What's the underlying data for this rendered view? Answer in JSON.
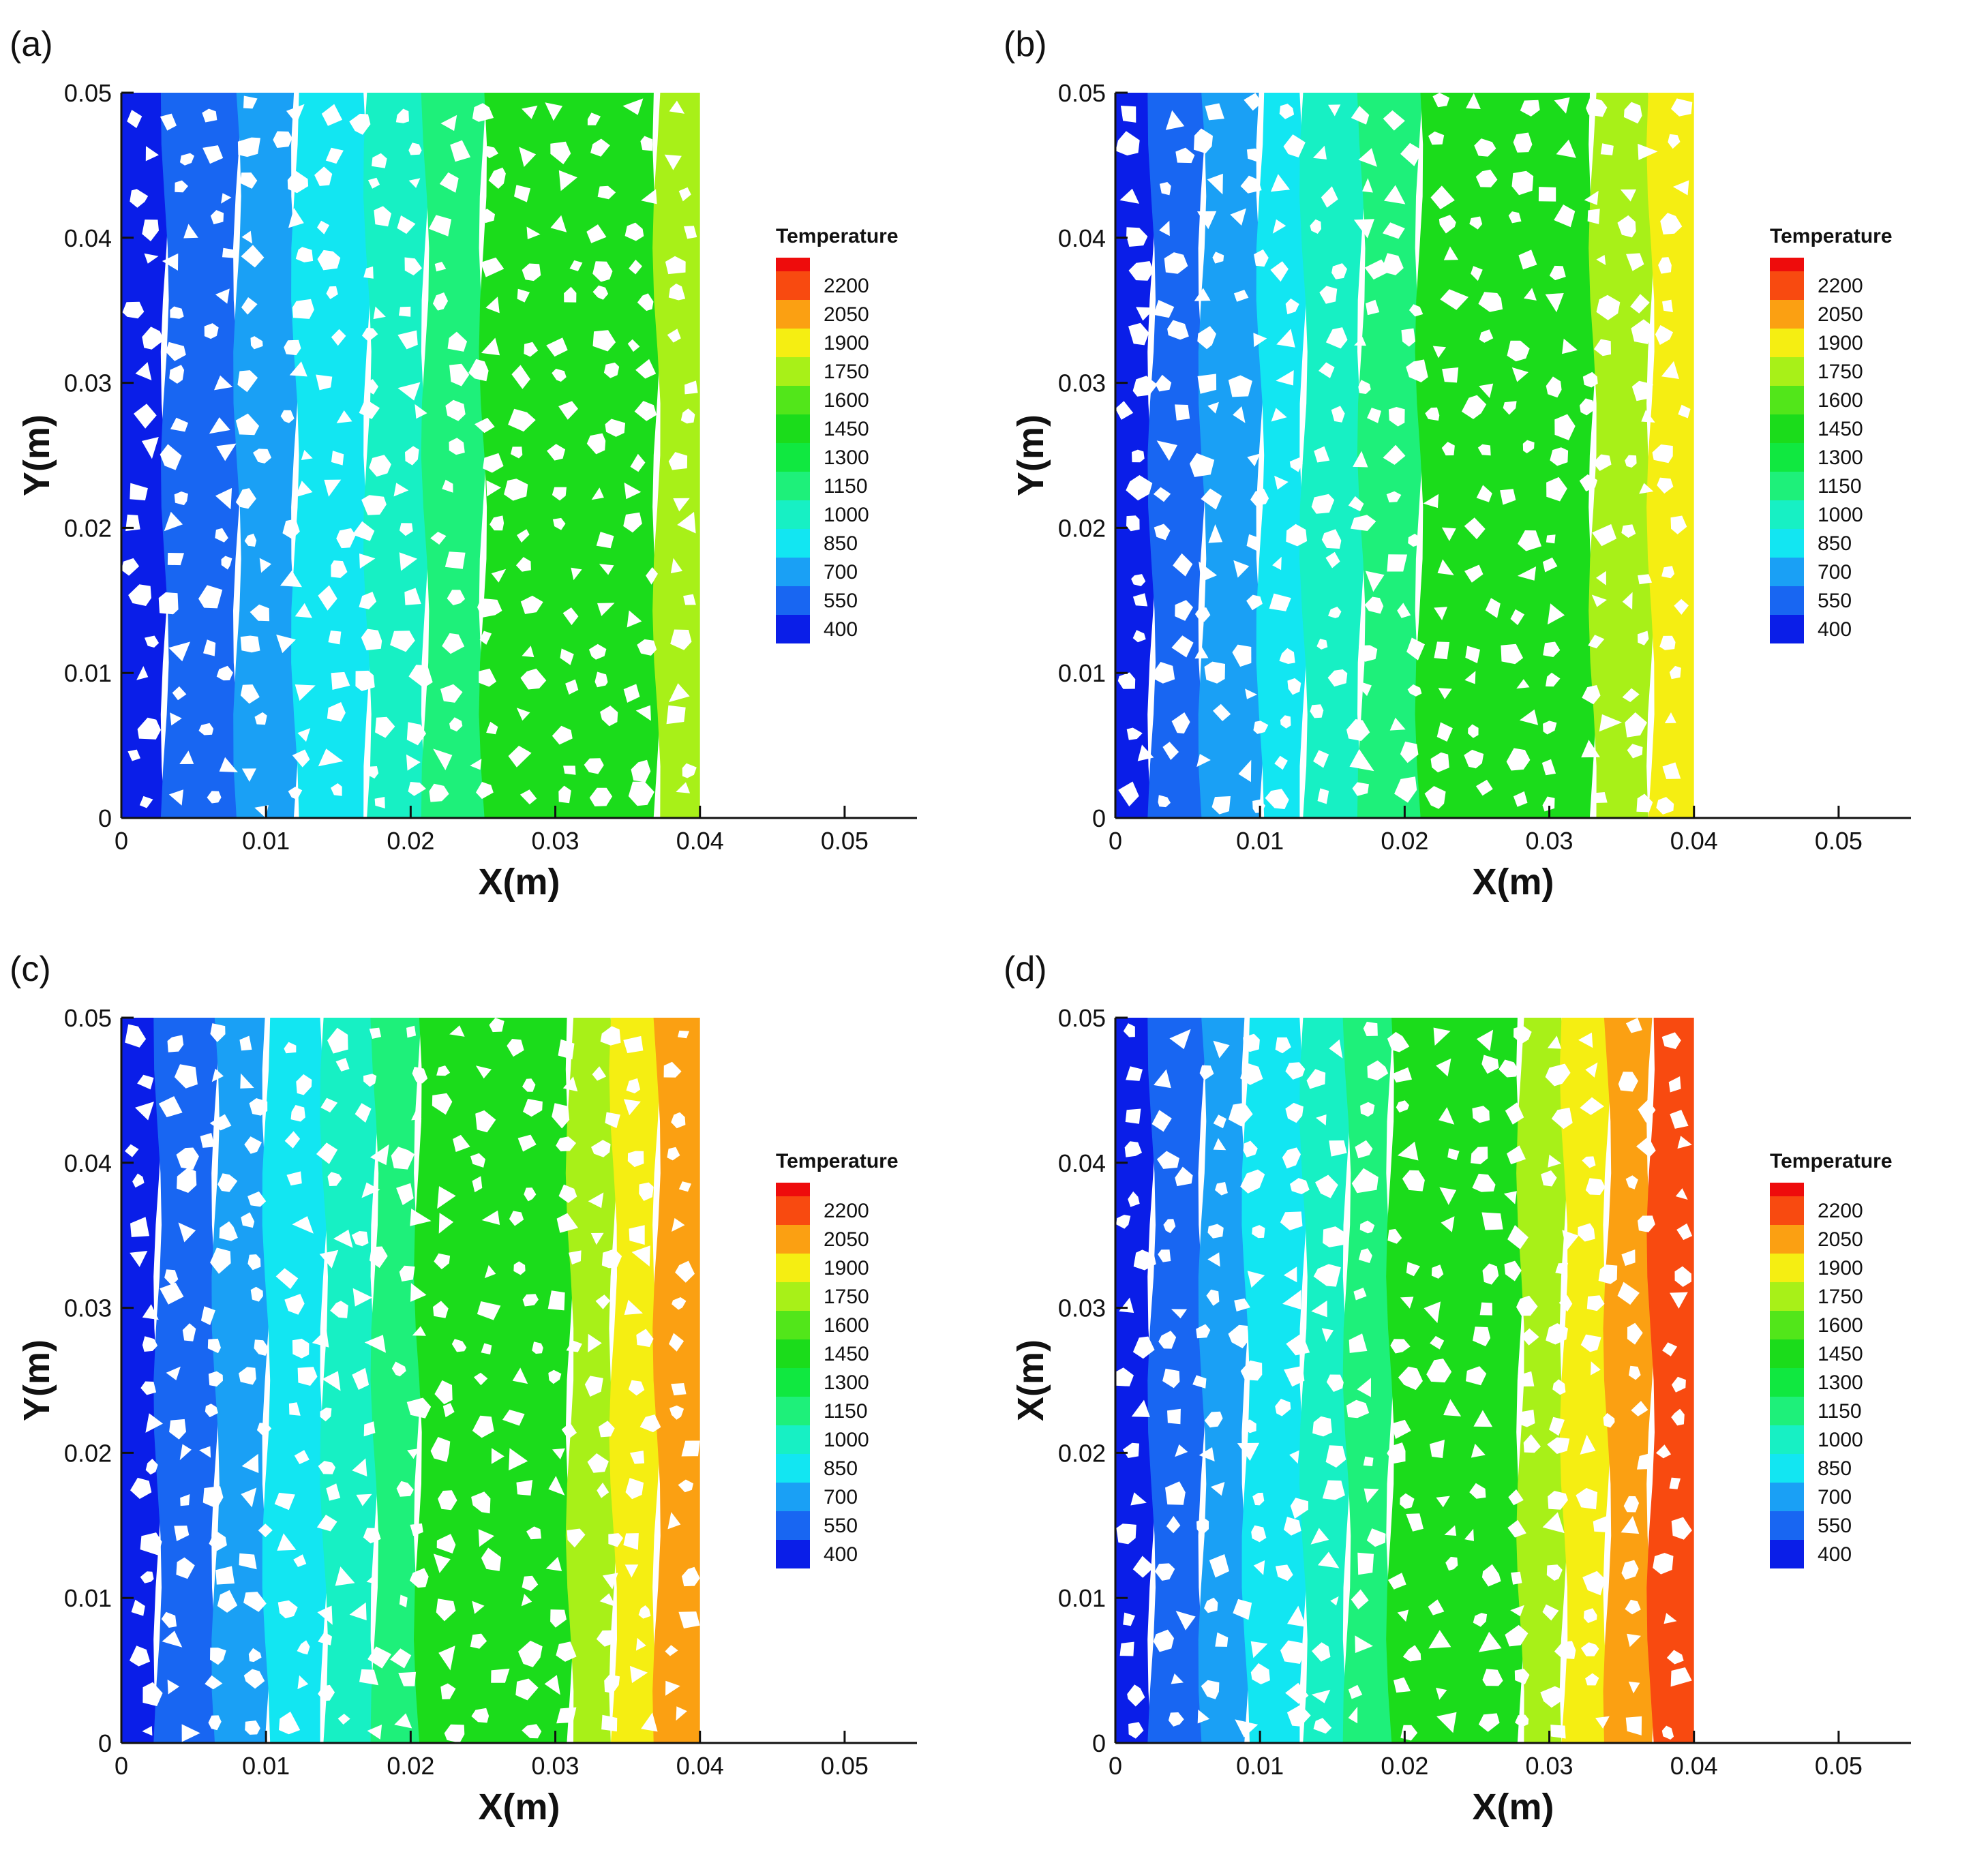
{
  "chart_data": [
    {
      "type": "heatmap",
      "panel_label": "(a)",
      "xlabel": "X(m)",
      "ylabel": "Y(m)",
      "xlim": [
        0,
        0.055
      ],
      "ylim": [
        0,
        0.05
      ],
      "x_ticks": [
        "0",
        "0.01",
        "0.02",
        "0.03",
        "0.04",
        "0.05"
      ],
      "y_ticks": [
        "0",
        "0.01",
        "0.02",
        "0.03",
        "0.04",
        "0.05"
      ],
      "domain_x_max": 0.04,
      "legend_title": "Temperature",
      "legend_levels": [
        "2200",
        "2050",
        "1900",
        "1750",
        "1600",
        "1450",
        "1300",
        "1150",
        "1000",
        "850",
        "700",
        "550",
        "400"
      ],
      "bands": [
        {
          "x_start": 0,
          "x_end": 0.003,
          "temperature": 400
        },
        {
          "x_start": 0.003,
          "x_end": 0.008,
          "temperature": 550
        },
        {
          "x_start": 0.008,
          "x_end": 0.012,
          "temperature": 700
        },
        {
          "x_start": 0.012,
          "x_end": 0.017,
          "temperature": 850
        },
        {
          "x_start": 0.017,
          "x_end": 0.021,
          "temperature": 1000
        },
        {
          "x_start": 0.021,
          "x_end": 0.025,
          "temperature": 1150
        },
        {
          "x_start": 0.025,
          "x_end": 0.037,
          "temperature": 1450
        },
        {
          "x_start": 0.037,
          "x_end": 0.04,
          "temperature": 1750
        }
      ]
    },
    {
      "type": "heatmap",
      "panel_label": "(b)",
      "xlabel": "X(m)",
      "ylabel": "Y(m)",
      "xlim": [
        0,
        0.055
      ],
      "ylim": [
        0,
        0.05
      ],
      "x_ticks": [
        "0",
        "0.01",
        "0.02",
        "0.03",
        "0.04",
        "0.05"
      ],
      "y_ticks": [
        "0",
        "0.01",
        "0.02",
        "0.03",
        "0.04",
        "0.05"
      ],
      "domain_x_max": 0.04,
      "legend_title": "Temperature",
      "legend_levels": [
        "2200",
        "2050",
        "1900",
        "1750",
        "1600",
        "1450",
        "1300",
        "1150",
        "1000",
        "850",
        "700",
        "550",
        "400"
      ],
      "bands": [
        {
          "x_start": 0,
          "x_end": 0.0025,
          "temperature": 400
        },
        {
          "x_start": 0.0025,
          "x_end": 0.006,
          "temperature": 550
        },
        {
          "x_start": 0.006,
          "x_end": 0.01,
          "temperature": 700
        },
        {
          "x_start": 0.01,
          "x_end": 0.013,
          "temperature": 850
        },
        {
          "x_start": 0.013,
          "x_end": 0.017,
          "temperature": 1000
        },
        {
          "x_start": 0.017,
          "x_end": 0.021,
          "temperature": 1150
        },
        {
          "x_start": 0.021,
          "x_end": 0.033,
          "temperature": 1450
        },
        {
          "x_start": 0.033,
          "x_end": 0.037,
          "temperature": 1750
        },
        {
          "x_start": 0.037,
          "x_end": 0.04,
          "temperature": 1900
        }
      ]
    },
    {
      "type": "heatmap",
      "panel_label": "(c)",
      "xlabel": "X(m)",
      "ylabel": "Y(m)",
      "xlim": [
        0,
        0.055
      ],
      "ylim": [
        0,
        0.05
      ],
      "x_ticks": [
        "0",
        "0.01",
        "0.02",
        "0.03",
        "0.04",
        "0.05"
      ],
      "y_ticks": [
        "0",
        "0.01",
        "0.02",
        "0.03",
        "0.04",
        "0.05"
      ],
      "domain_x_max": 0.04,
      "legend_title": "Temperature",
      "legend_levels": [
        "2200",
        "2050",
        "1900",
        "1750",
        "1600",
        "1450",
        "1300",
        "1150",
        "1000",
        "850",
        "700",
        "550",
        "400"
      ],
      "bands": [
        {
          "x_start": 0,
          "x_end": 0.0025,
          "temperature": 400
        },
        {
          "x_start": 0.0025,
          "x_end": 0.0065,
          "temperature": 550
        },
        {
          "x_start": 0.0065,
          "x_end": 0.01,
          "temperature": 700
        },
        {
          "x_start": 0.01,
          "x_end": 0.014,
          "temperature": 850
        },
        {
          "x_start": 0.014,
          "x_end": 0.0175,
          "temperature": 1000
        },
        {
          "x_start": 0.0175,
          "x_end": 0.0205,
          "temperature": 1150
        },
        {
          "x_start": 0.0205,
          "x_end": 0.031,
          "temperature": 1450
        },
        {
          "x_start": 0.031,
          "x_end": 0.034,
          "temperature": 1750
        },
        {
          "x_start": 0.034,
          "x_end": 0.037,
          "temperature": 1900
        },
        {
          "x_start": 0.037,
          "x_end": 0.04,
          "temperature": 2050
        }
      ]
    },
    {
      "type": "heatmap",
      "panel_label": "(d)",
      "xlabel": "X(m)",
      "ylabel": "X(m)",
      "xlim": [
        0,
        0.055
      ],
      "ylim": [
        0,
        0.05
      ],
      "x_ticks": [
        "0",
        "0.01",
        "0.02",
        "0.03",
        "0.04",
        "0.05"
      ],
      "y_ticks": [
        "0",
        "0.01",
        "0.02",
        "0.03",
        "0.04",
        "0.05"
      ],
      "domain_x_max": 0.04,
      "legend_title": "Temperature",
      "legend_levels": [
        "2200",
        "2050",
        "1900",
        "1750",
        "1600",
        "1450",
        "1300",
        "1150",
        "1000",
        "850",
        "700",
        "550",
        "400"
      ],
      "bands": [
        {
          "x_start": 0,
          "x_end": 0.0025,
          "temperature": 400
        },
        {
          "x_start": 0.0025,
          "x_end": 0.006,
          "temperature": 550
        },
        {
          "x_start": 0.006,
          "x_end": 0.009,
          "temperature": 700
        },
        {
          "x_start": 0.009,
          "x_end": 0.013,
          "temperature": 850
        },
        {
          "x_start": 0.013,
          "x_end": 0.016,
          "temperature": 1000
        },
        {
          "x_start": 0.016,
          "x_end": 0.019,
          "temperature": 1150
        },
        {
          "x_start": 0.019,
          "x_end": 0.028,
          "temperature": 1450
        },
        {
          "x_start": 0.028,
          "x_end": 0.031,
          "temperature": 1750
        },
        {
          "x_start": 0.031,
          "x_end": 0.034,
          "temperature": 1900
        },
        {
          "x_start": 0.034,
          "x_end": 0.037,
          "temperature": 2050
        },
        {
          "x_start": 0.037,
          "x_end": 0.04,
          "temperature": 2200
        }
      ]
    }
  ],
  "colors": {
    "400": "#0a1ee8",
    "550": "#1866f2",
    "700": "#1aa0f5",
    "850": "#12e6f2",
    "1000": "#17f0c4",
    "1150": "#1ef07a",
    "1300": "#10e840",
    "1450": "#1bdc1b",
    "1600": "#52e61a",
    "1750": "#a8f018",
    "1900": "#f5ee12",
    "2050": "#fba012",
    "2200": "#f84a10",
    "top": "#ee0c0c",
    "particle": "#ffffff",
    "axis": "#111111"
  }
}
